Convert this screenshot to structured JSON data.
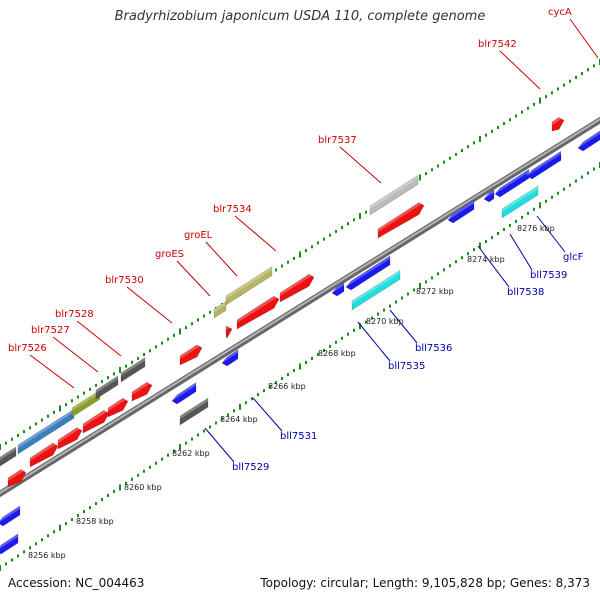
{
  "title": "Bradyrhizobium japonicum USDA 110, complete genome",
  "footer": {
    "accession": "Accession: NC_004463",
    "summary": "Topology: circular; Length: 9,105,828 bp; Genes: 8,373"
  },
  "colors": {
    "backbone": "#8c8c8c",
    "tick": "#1a8a1a",
    "forward_label": "#cc0000",
    "reverse_label": "#0000aa",
    "coord_label": "#222222"
  },
  "genome_view": {
    "strand_forward": "forward strand genes (above backbone)",
    "strand_reverse": "reverse strand genes (below backbone)",
    "coordinate_labels": [
      "8256 kbp",
      "8258 kbp",
      "8260 kbp",
      "8262 kbp",
      "8264 kbp",
      "8266 kbp",
      "8268 kbp",
      "8270 kbp",
      "8272 kbp",
      "8274 kbp",
      "8276 kbp"
    ],
    "forward_genes": [
      {
        "name": "blr7526",
        "color": "#3a7fbf"
      },
      {
        "name": "blr7527",
        "color": "#3a7fbf"
      },
      {
        "name": "blr7528",
        "color": "#8a9e2a"
      },
      {
        "name": "blr7530",
        "color": "#ee1111"
      },
      {
        "name": "groES",
        "color": "#b8b460"
      },
      {
        "name": "groEL",
        "color": "#b8b460"
      },
      {
        "name": "blr7534",
        "color": "#ee1111"
      },
      {
        "name": "blr7537",
        "color": "#bbbbbb"
      },
      {
        "name": "blr7542",
        "color": "#ee1111"
      },
      {
        "name": "cycA",
        "color": "#ee1111"
      }
    ],
    "reverse_genes": [
      {
        "name": "bll7529",
        "color": "#555555"
      },
      {
        "name": "bll7531",
        "color": "#1a1aee"
      },
      {
        "name": "bll7535",
        "color": "#1a1aee"
      },
      {
        "name": "bll7536",
        "color": "#22dddd"
      },
      {
        "name": "bll7538",
        "color": "#1a1aee"
      },
      {
        "name": "bll7539",
        "color": "#22dddd"
      },
      {
        "name": "glcF",
        "color": "#1a1aee"
      }
    ]
  }
}
